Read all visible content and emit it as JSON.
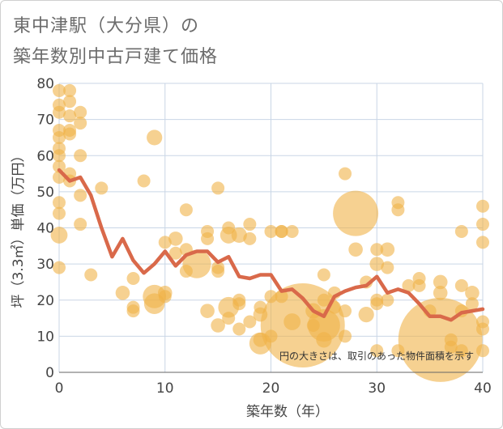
{
  "chart_data": {
    "type": "scatter",
    "title_line1": "東中津駅（大分県）の",
    "title_line2": "築年数別中古戸建て価格",
    "xlabel": "築年数（年）",
    "ylabel": "坪（3.3㎡）単価（万円）",
    "note": "円の大きさは、取引のあった物件面積を示す",
    "xlim": [
      0,
      40
    ],
    "ylim": [
      0,
      80
    ],
    "xticks": [
      0,
      10,
      20,
      30,
      40
    ],
    "yticks": [
      0,
      10,
      20,
      30,
      40,
      50,
      60,
      70,
      80
    ],
    "colors": {
      "bubble": "#f0b247",
      "line": "#d9694a",
      "grid": "#c9d6e6"
    },
    "bubbles": [
      {
        "x": 0,
        "y": 78,
        "s": 1
      },
      {
        "x": 0,
        "y": 74,
        "s": 1
      },
      {
        "x": 0,
        "y": 72,
        "s": 1
      },
      {
        "x": 0,
        "y": 67,
        "s": 1
      },
      {
        "x": 0,
        "y": 65,
        "s": 1
      },
      {
        "x": 0,
        "y": 62,
        "s": 1
      },
      {
        "x": 0,
        "y": 60,
        "s": 1
      },
      {
        "x": 0,
        "y": 57,
        "s": 1
      },
      {
        "x": 0,
        "y": 54,
        "s": 1
      },
      {
        "x": 0,
        "y": 47,
        "s": 1
      },
      {
        "x": 0,
        "y": 44,
        "s": 1
      },
      {
        "x": 0,
        "y": 38,
        "s": 1.3
      },
      {
        "x": 0,
        "y": 29,
        "s": 1
      },
      {
        "x": 1,
        "y": 78,
        "s": 1
      },
      {
        "x": 1,
        "y": 75,
        "s": 1
      },
      {
        "x": 1,
        "y": 71,
        "s": 1
      },
      {
        "x": 1,
        "y": 67,
        "s": 1
      },
      {
        "x": 1,
        "y": 66,
        "s": 1
      },
      {
        "x": 1,
        "y": 55,
        "s": 1
      },
      {
        "x": 1,
        "y": 53,
        "s": 1
      },
      {
        "x": 2,
        "y": 72,
        "s": 1
      },
      {
        "x": 2,
        "y": 69,
        "s": 1
      },
      {
        "x": 2,
        "y": 60,
        "s": 1
      },
      {
        "x": 2,
        "y": 49,
        "s": 1
      },
      {
        "x": 2,
        "y": 41,
        "s": 1
      },
      {
        "x": 3,
        "y": 27,
        "s": 1
      },
      {
        "x": 4,
        "y": 51,
        "s": 1
      },
      {
        "x": 6,
        "y": 22,
        "s": 1.1
      },
      {
        "x": 7,
        "y": 26,
        "s": 1
      },
      {
        "x": 7,
        "y": 18,
        "s": 1
      },
      {
        "x": 7,
        "y": 17,
        "s": 1
      },
      {
        "x": 8,
        "y": 53,
        "s": 1
      },
      {
        "x": 9,
        "y": 65,
        "s": 1.2
      },
      {
        "x": 9,
        "y": 21,
        "s": 1.8
      },
      {
        "x": 9,
        "y": 19,
        "s": 1.6
      },
      {
        "x": 10,
        "y": 36,
        "s": 1
      },
      {
        "x": 10,
        "y": 22,
        "s": 1.1
      },
      {
        "x": 10,
        "y": 21,
        "s": 1
      },
      {
        "x": 11,
        "y": 37,
        "s": 1.1
      },
      {
        "x": 11,
        "y": 33,
        "s": 1
      },
      {
        "x": 12,
        "y": 45,
        "s": 1
      },
      {
        "x": 12,
        "y": 34,
        "s": 1
      },
      {
        "x": 12,
        "y": 28,
        "s": 1
      },
      {
        "x": 13,
        "y": 30,
        "s": 2.2
      },
      {
        "x": 14,
        "y": 39,
        "s": 1
      },
      {
        "x": 14,
        "y": 37,
        "s": 1
      },
      {
        "x": 14,
        "y": 17,
        "s": 1.1
      },
      {
        "x": 15,
        "y": 51,
        "s": 1
      },
      {
        "x": 15,
        "y": 29,
        "s": 1
      },
      {
        "x": 15,
        "y": 28,
        "s": 1
      },
      {
        "x": 15,
        "y": 13,
        "s": 1.1
      },
      {
        "x": 16,
        "y": 40,
        "s": 1
      },
      {
        "x": 16,
        "y": 38,
        "s": 1.3
      },
      {
        "x": 16,
        "y": 18,
        "s": 1.6
      },
      {
        "x": 16,
        "y": 15,
        "s": 1
      },
      {
        "x": 17,
        "y": 38,
        "s": 1.2
      },
      {
        "x": 17,
        "y": 20,
        "s": 1
      },
      {
        "x": 17,
        "y": 19,
        "s": 1
      },
      {
        "x": 17,
        "y": 12,
        "s": 1
      },
      {
        "x": 18,
        "y": 41,
        "s": 1
      },
      {
        "x": 18,
        "y": 37,
        "s": 1
      },
      {
        "x": 18,
        "y": 14,
        "s": 1
      },
      {
        "x": 19,
        "y": 18,
        "s": 1
      },
      {
        "x": 19,
        "y": 16,
        "s": 1.1
      },
      {
        "x": 19,
        "y": 9,
        "s": 1.1
      },
      {
        "x": 19,
        "y": 8,
        "s": 1.7
      },
      {
        "x": 20,
        "y": 39,
        "s": 1
      },
      {
        "x": 20,
        "y": 21,
        "s": 1
      },
      {
        "x": 20,
        "y": 10,
        "s": 1
      },
      {
        "x": 21,
        "y": 39,
        "s": 1
      },
      {
        "x": 21,
        "y": 39,
        "s": 1
      },
      {
        "x": 21,
        "y": 21,
        "s": 1
      },
      {
        "x": 22,
        "y": 39,
        "s": 1
      },
      {
        "x": 22,
        "y": 14,
        "s": 1.3
      },
      {
        "x": 23,
        "y": 13,
        "s": 6.5
      },
      {
        "x": 24,
        "y": 17,
        "s": 1.2
      },
      {
        "x": 24,
        "y": 13,
        "s": 1
      },
      {
        "x": 25,
        "y": 27,
        "s": 1
      },
      {
        "x": 25,
        "y": 20,
        "s": 1
      },
      {
        "x": 25,
        "y": 13,
        "s": 2.5
      },
      {
        "x": 25,
        "y": 9,
        "s": 1.2
      },
      {
        "x": 26,
        "y": 22,
        "s": 1
      },
      {
        "x": 26,
        "y": 18,
        "s": 1
      },
      {
        "x": 27,
        "y": 55,
        "s": 1
      },
      {
        "x": 27,
        "y": 17,
        "s": 1
      },
      {
        "x": 27,
        "y": 10,
        "s": 1
      },
      {
        "x": 28,
        "y": 44,
        "s": 3.5
      },
      {
        "x": 28,
        "y": 34,
        "s": 1.1
      },
      {
        "x": 29,
        "y": 25,
        "s": 1
      },
      {
        "x": 29,
        "y": 16,
        "s": 1.2
      },
      {
        "x": 30,
        "y": 34,
        "s": 1
      },
      {
        "x": 30,
        "y": 30,
        "s": 1.1
      },
      {
        "x": 30,
        "y": 20,
        "s": 1
      },
      {
        "x": 30,
        "y": 19,
        "s": 1
      },
      {
        "x": 30,
        "y": 6,
        "s": 1
      },
      {
        "x": 31,
        "y": 34,
        "s": 1.1
      },
      {
        "x": 31,
        "y": 29,
        "s": 1
      },
      {
        "x": 31,
        "y": 20,
        "s": 1
      },
      {
        "x": 32,
        "y": 47,
        "s": 1
      },
      {
        "x": 32,
        "y": 45,
        "s": 1
      },
      {
        "x": 32,
        "y": 6,
        "s": 1
      },
      {
        "x": 33,
        "y": 24,
        "s": 1
      },
      {
        "x": 34,
        "y": 26,
        "s": 1
      },
      {
        "x": 34,
        "y": 24,
        "s": 1
      },
      {
        "x": 35,
        "y": 17,
        "s": 1
      },
      {
        "x": 36,
        "y": 25,
        "s": 1.1
      },
      {
        "x": 36,
        "y": 22,
        "s": 1.1
      },
      {
        "x": 36,
        "y": 9,
        "s": 6.5
      },
      {
        "x": 37,
        "y": 9,
        "s": 1
      },
      {
        "x": 37,
        "y": 7,
        "s": 1
      },
      {
        "x": 38,
        "y": 39,
        "s": 1
      },
      {
        "x": 38,
        "y": 24,
        "s": 1
      },
      {
        "x": 38,
        "y": 17,
        "s": 1
      },
      {
        "x": 38,
        "y": 6,
        "s": 1
      },
      {
        "x": 39,
        "y": 22,
        "s": 1.1
      },
      {
        "x": 39,
        "y": 19,
        "s": 1
      },
      {
        "x": 40,
        "y": 46,
        "s": 1
      },
      {
        "x": 40,
        "y": 41,
        "s": 1
      },
      {
        "x": 40,
        "y": 36,
        "s": 1
      },
      {
        "x": 40,
        "y": 14,
        "s": 1
      },
      {
        "x": 40,
        "y": 12,
        "s": 1
      },
      {
        "x": 40,
        "y": 6,
        "s": 1
      }
    ],
    "trend": {
      "x": [
        0,
        1,
        2,
        3,
        4,
        5,
        6,
        7,
        8,
        9,
        10,
        11,
        12,
        13,
        14,
        15,
        16,
        17,
        18,
        19,
        20,
        21,
        22,
        23,
        24,
        25,
        26,
        27,
        28,
        29,
        30,
        31,
        32,
        33,
        34,
        35,
        36,
        37,
        38,
        39,
        40
      ],
      "y": [
        56,
        53,
        54,
        49,
        40,
        32,
        37,
        31,
        27.5,
        30,
        33.5,
        29.5,
        32.5,
        33.5,
        33.5,
        30.5,
        32,
        26.5,
        26,
        27,
        27,
        22.5,
        23,
        20.5,
        17,
        15.5,
        21,
        22.5,
        23.5,
        24,
        26.5,
        22,
        23,
        22,
        19,
        15.5,
        15.5,
        14.5,
        16.5,
        17,
        17.5
      ]
    }
  }
}
